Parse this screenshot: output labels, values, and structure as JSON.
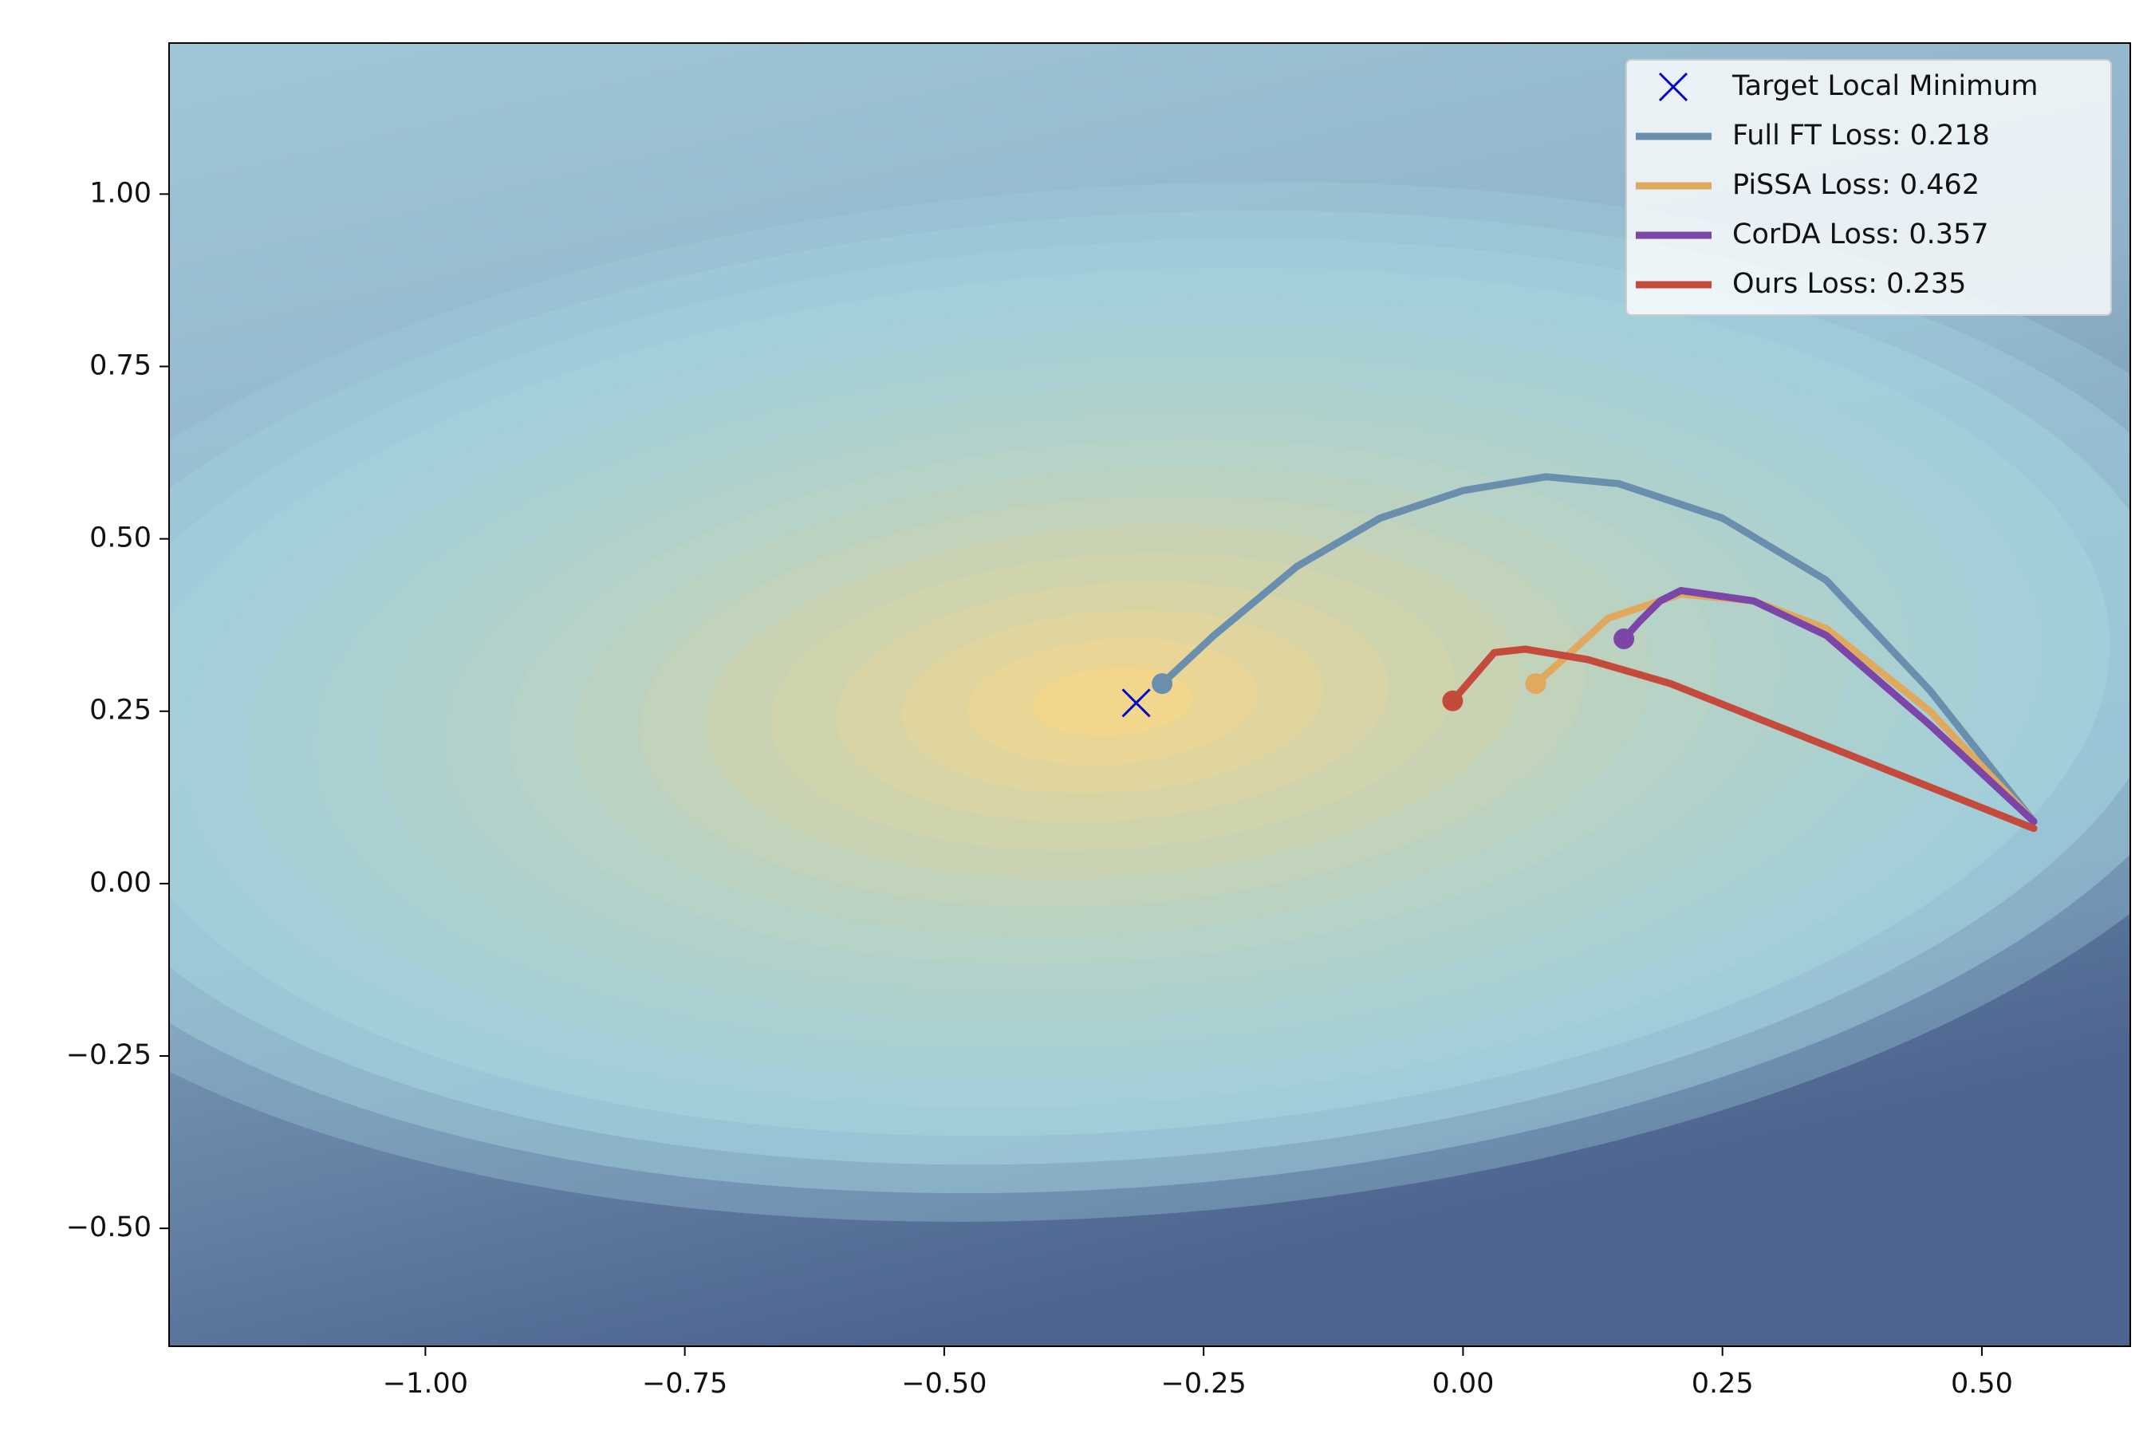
{
  "chart_data": {
    "type": "line",
    "xlim": [
      -1.247,
      0.643
    ],
    "ylim": [
      -0.671,
      1.219
    ],
    "xticks": [
      {
        "value": -1,
        "label": "−1.00"
      },
      {
        "value": -0.75,
        "label": "−0.75"
      },
      {
        "value": -0.5,
        "label": "−0.50"
      },
      {
        "value": -0.25,
        "label": "−0.25"
      },
      {
        "value": 0,
        "label": "0.00"
      },
      {
        "value": 0.25,
        "label": "0.25"
      },
      {
        "value": 0.5,
        "label": "0.50"
      }
    ],
    "yticks": [
      {
        "value": -0.5,
        "label": "−0.50"
      },
      {
        "value": -0.25,
        "label": "−0.25"
      },
      {
        "value": 0,
        "label": "0.00"
      },
      {
        "value": 0.25,
        "label": "0.25"
      },
      {
        "value": 0.5,
        "label": "0.50"
      },
      {
        "value": 0.75,
        "label": "0.75"
      },
      {
        "value": 1,
        "label": "1.00"
      }
    ],
    "legend": "upper right",
    "target": {
      "name": "Target Local Minimum",
      "x": -0.315,
      "y": 0.262,
      "color": "#0000cc"
    },
    "series": [
      {
        "name": "Full FT Loss:  0.218",
        "color": "#6a8fae",
        "x": [
          0.55,
          0.45,
          0.35,
          0.25,
          0.15,
          0.08,
          0.0,
          -0.08,
          -0.16,
          -0.24,
          -0.29
        ],
        "values": [
          0.09,
          0.28,
          0.44,
          0.53,
          0.58,
          0.59,
          0.57,
          0.53,
          0.46,
          0.36,
          0.29
        ]
      },
      {
        "name": "PiSSA Loss:  0.462",
        "color": "#e0a95e",
        "x": [
          0.55,
          0.45,
          0.35,
          0.28,
          0.21,
          0.14,
          0.1,
          0.07
        ],
        "values": [
          0.09,
          0.25,
          0.37,
          0.41,
          0.42,
          0.385,
          0.33,
          0.29
        ]
      },
      {
        "name": "CorDA Loss:  0.357",
        "color": "#7b46a8",
        "x": [
          0.55,
          0.45,
          0.35,
          0.28,
          0.21,
          0.19,
          0.17,
          0.155
        ],
        "values": [
          0.09,
          0.23,
          0.36,
          0.41,
          0.425,
          0.41,
          0.38,
          0.355
        ]
      },
      {
        "name": "Ours Loss:  0.235",
        "color": "#c44a3c",
        "x": [
          0.55,
          0.45,
          0.35,
          0.25,
          0.2,
          0.12,
          0.06,
          0.03,
          0.01,
          -0.01
        ],
        "values": [
          0.08,
          0.14,
          0.2,
          0.26,
          0.29,
          0.325,
          0.34,
          0.335,
          0.3,
          0.265
        ]
      }
    ]
  }
}
